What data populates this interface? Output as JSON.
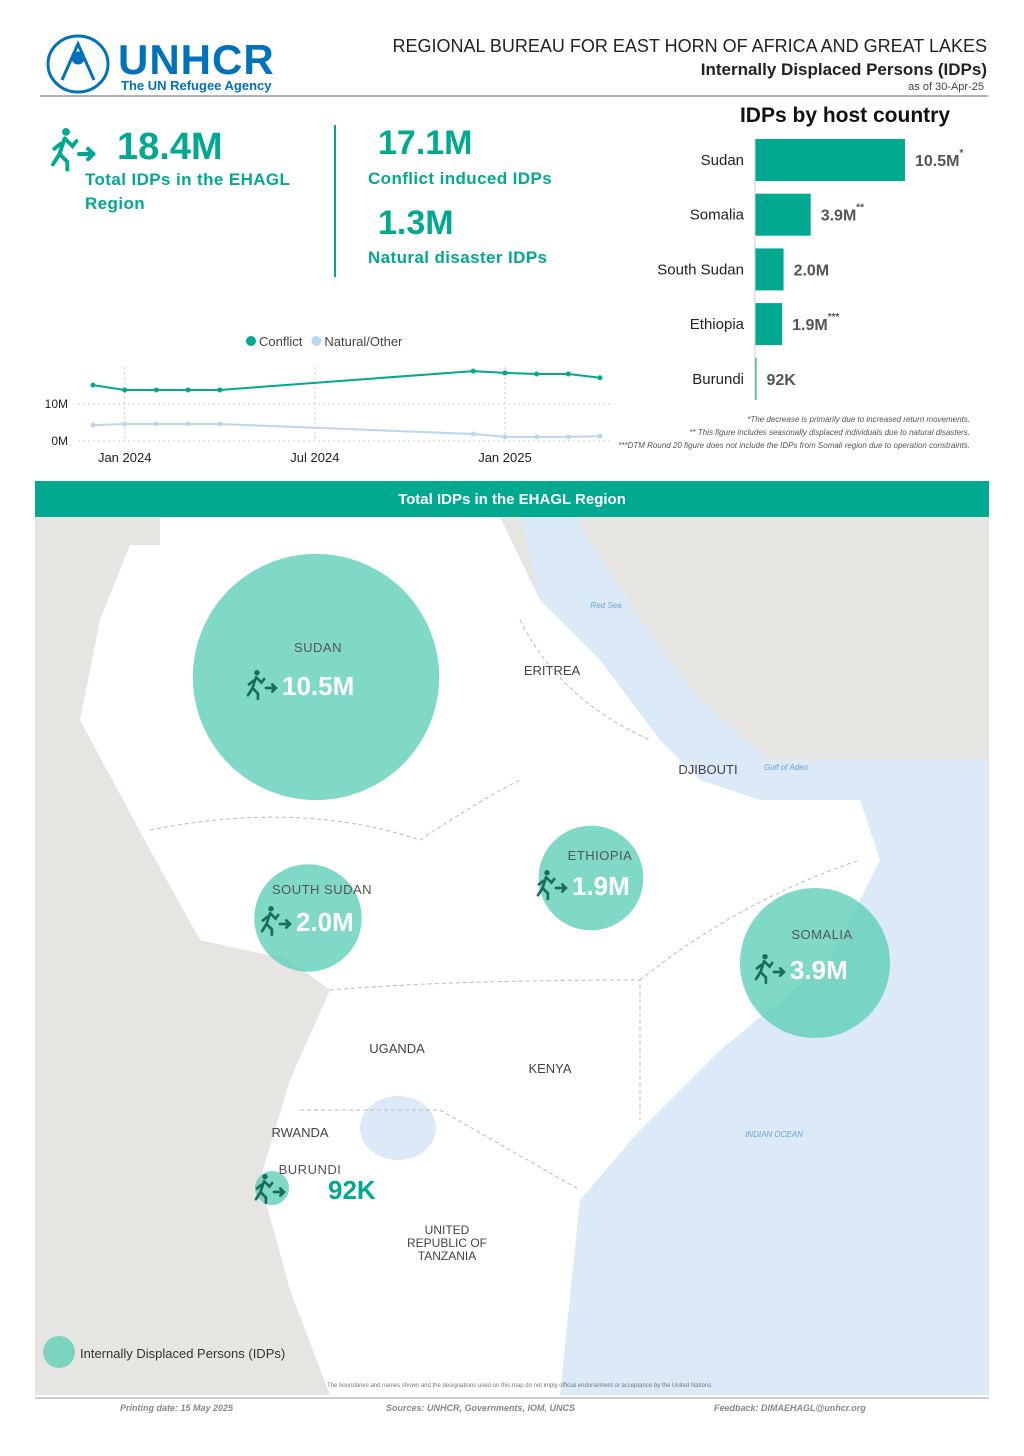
{
  "header": {
    "logo": "UNHCR",
    "logo_subtitle": "The UN Refugee Agency",
    "title": "REGIONAL BUREAU FOR EAST HORN OF AFRICA AND GREAT LAKES",
    "subtitle": "Internally Displaced Persons (IDPs)",
    "date": "as of 30-Apr-25"
  },
  "kpis": [
    {
      "value": "18.4M",
      "label": "Total IDPs in the EHAGL Region"
    },
    {
      "value": "17.1M",
      "label": "Conflict induced IDPs"
    },
    {
      "value": "1.3M",
      "label": "Natural disaster IDPs"
    }
  ],
  "chart_data": [
    {
      "type": "bar",
      "orientation": "horizontal",
      "title": "IDPs by host country",
      "categories": [
        "Sudan",
        "Somalia",
        "South Sudan",
        "Ethiopia",
        "Burundi"
      ],
      "values": [
        10.5,
        3.9,
        2.0,
        1.9,
        0.092
      ],
      "value_labels": [
        "10.5M",
        "3.9M",
        "2.0M",
        "1.9M",
        "92K"
      ],
      "footnote_marks": [
        "*",
        "**",
        null,
        "***",
        null
      ],
      "color": "#00a98f",
      "footnotes": [
        "*The decrease is primarily due to increased return movements.",
        "** This figure includes seasonally displaced individuals due to natural disasters.",
        "***DTM Round 20 figure does not include the IDPs from Somali region due to operation constraints."
      ]
    },
    {
      "type": "line",
      "x": [
        "2023-12",
        "2024-01",
        "2024-02",
        "2024-03",
        "2024-04",
        "2024-12",
        "2025-01",
        "2025-02",
        "2025-03",
        "2025-04"
      ],
      "series": [
        {
          "name": "Conflict",
          "color": "#00a98f",
          "values": [
            15.1,
            13.8,
            13.8,
            13.8,
            13.8,
            18.9,
            18.4,
            18.1,
            18.1,
            17.1
          ]
        },
        {
          "name": "Natural/Other",
          "color": "#b9d8f0",
          "values": [
            4.3,
            4.6,
            4.6,
            4.6,
            4.6,
            1.9,
            1.1,
            1.1,
            1.1,
            1.3
          ]
        }
      ],
      "xlim": [
        "2023-12",
        "2025-04"
      ],
      "xticks": [
        {
          "value": "2024-01",
          "label": "Jan 2024"
        },
        {
          "value": "2024-07",
          "label": "Jul 2024"
        },
        {
          "value": "2025-01",
          "label": "Jan 2025"
        }
      ],
      "ylim": [
        0,
        20
      ],
      "yticks": [
        {
          "value": 0,
          "label": "0M"
        },
        {
          "value": 10,
          "label": "10M"
        }
      ],
      "grid": true,
      "legend": "top"
    }
  ],
  "map": {
    "title": "Total IDPs in the EHAGL Region",
    "bubbles": [
      {
        "name": "SUDAN",
        "value": 10.5,
        "value_label": "10.5M"
      },
      {
        "name": "SOUTH SUDAN",
        "value": 2.0,
        "value_label": "2.0M"
      },
      {
        "name": "ETHIOPIA",
        "value": 1.9,
        "value_label": "1.9M"
      },
      {
        "name": "SOMALIA",
        "value": 3.9,
        "value_label": "3.9M"
      },
      {
        "name": "BURUNDI",
        "value": 0.092,
        "value_label": "92K"
      }
    ],
    "labels": [
      "ERITREA",
      "DJIBOUTI",
      "UGANDA",
      "KENYA",
      "RWANDA",
      "UNITED REPUBLIC OF TANZANIA",
      "Red Sea",
      "Gulf of Aden",
      "INDIAN OCEAN"
    ],
    "legend": "Internally Displaced Persons (IDPs)",
    "disclaimer": "The boundaries and names shown and the designations used on this map do not imply official endorsement or acceptance by the United Nations."
  },
  "footer": {
    "printing_date": "Printing date: 15 May 2025",
    "sources": "Sources: UNHCR, Governments, IOM, UNCS",
    "feedback": "Feedback: DIMAEHAGL@unhcr.org"
  }
}
